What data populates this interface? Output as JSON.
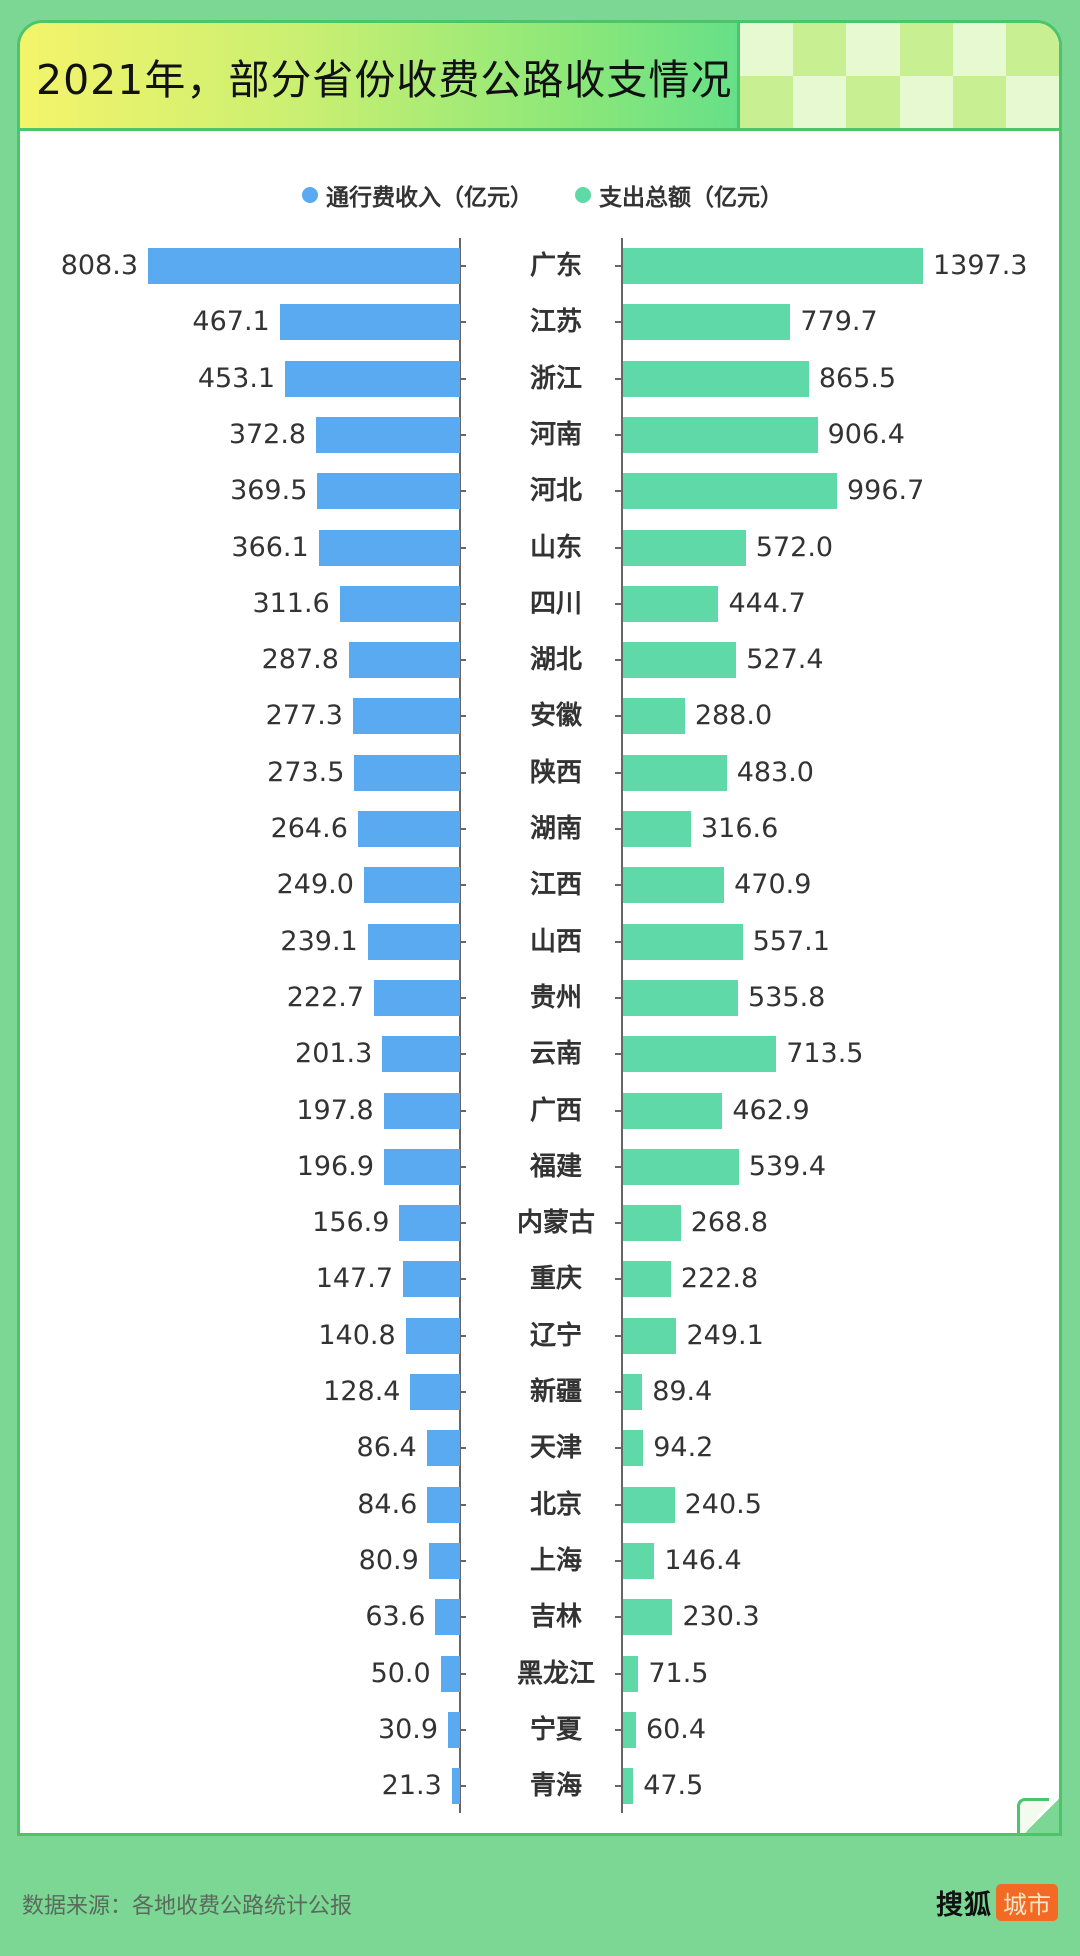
{
  "header": {
    "title": "2021年，部分省份收费公路收支情况"
  },
  "legend": [
    {
      "label": "通行费收入（亿元）",
      "color": "#59aaf0"
    },
    {
      "label": "支出总额（亿元）",
      "color": "#5fd9a8"
    }
  ],
  "footer": {
    "source": "数据来源：各地收费公路统计公报",
    "logo_main": "搜狐",
    "logo_tag": "城市"
  },
  "colors": {
    "income": "#59aaf0",
    "expense": "#5fd9a8",
    "background": "#7cd694",
    "border": "#4cc46a",
    "logo_tag": "#f26a24"
  },
  "chart_data": {
    "type": "bar",
    "orientation": "horizontal",
    "layout": "butterfly",
    "title": "2021年，部分省份收费公路收支情况",
    "xlabel": "",
    "ylabel": "",
    "legend_position": "top",
    "grid": false,
    "categories": [
      "广东",
      "江苏",
      "浙江",
      "河南",
      "河北",
      "山东",
      "四川",
      "湖北",
      "安徽",
      "陕西",
      "湖南",
      "江西",
      "山西",
      "贵州",
      "云南",
      "广西",
      "福建",
      "内蒙古",
      "重庆",
      "辽宁",
      "新疆",
      "天津",
      "北京",
      "上海",
      "吉林",
      "黑龙江",
      "宁夏",
      "青海"
    ],
    "series": [
      {
        "name": "通行费收入（亿元）",
        "side": "left",
        "values": [
          808.3,
          467.1,
          453.1,
          372.8,
          369.5,
          366.1,
          311.6,
          287.8,
          277.3,
          273.5,
          264.6,
          249.0,
          239.1,
          222.7,
          201.3,
          197.8,
          196.9,
          156.9,
          147.7,
          140.8,
          128.4,
          86.4,
          84.6,
          80.9,
          63.6,
          50.0,
          30.9,
          21.3
        ],
        "labels": [
          "808.3",
          "467.1",
          "453.1",
          "372.8",
          "369.5",
          "366.1",
          "311.6",
          "287.8",
          "277.3",
          "273.5",
          "264.6",
          "249.0",
          "239.1",
          "222.7",
          "201.3",
          "197.8",
          "196.9",
          "156.9",
          "147.7",
          "140.8",
          "128.4",
          "86.4",
          "84.6",
          "80.9",
          "63.6",
          "50.0",
          "30.9",
          "21.3"
        ]
      },
      {
        "name": "支出总额（亿元）",
        "side": "right",
        "values": [
          1397.3,
          779.7,
          865.5,
          906.4,
          996.7,
          572.0,
          444.7,
          527.4,
          288.0,
          483.0,
          316.6,
          470.9,
          557.1,
          535.8,
          713.5,
          462.9,
          539.4,
          268.8,
          222.8,
          249.1,
          89.4,
          94.2,
          240.5,
          146.4,
          230.3,
          71.5,
          60.4,
          47.5
        ],
        "labels": [
          "1397.3",
          "779.7",
          "865.5",
          "906.4",
          "996.7",
          "572.0",
          "444.7",
          "527.4",
          "288.0",
          "483.0",
          "316.6",
          "470.9",
          "557.1",
          "535.8",
          "713.5",
          "462.9",
          "539.4",
          "268.8",
          "222.8",
          "249.1",
          "89.4",
          "94.2",
          "240.5",
          "146.4",
          "230.3",
          "71.5",
          "60.4",
          "47.5"
        ]
      }
    ]
  }
}
